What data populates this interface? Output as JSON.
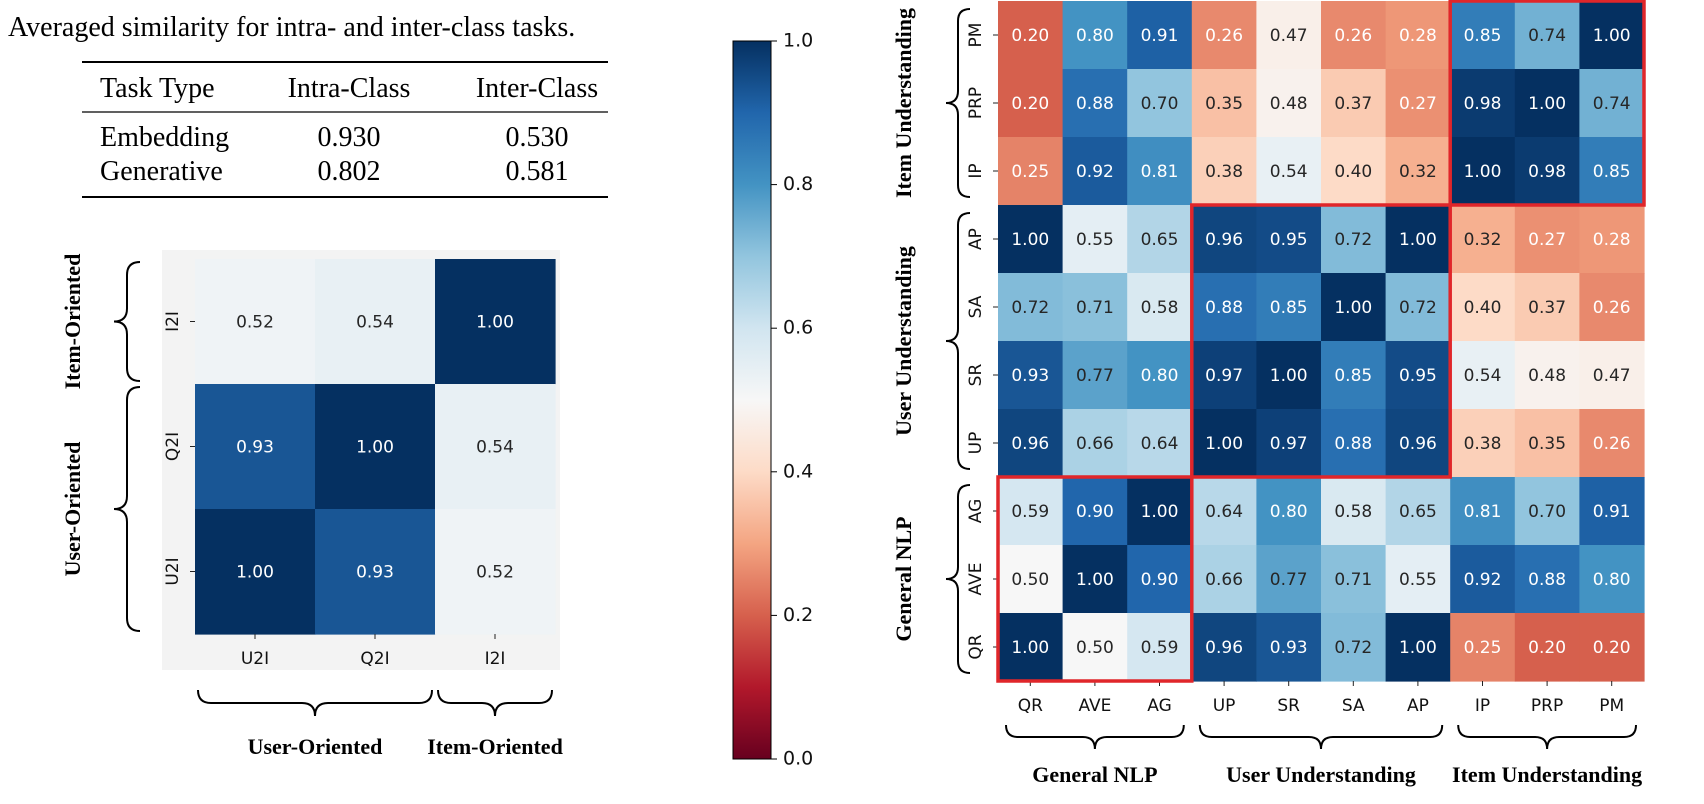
{
  "table": {
    "caption": "Averaged similarity for intra- and inter-class tasks.",
    "headers": [
      "Task Type",
      "Intra-Class",
      "Inter-Class"
    ],
    "rows": [
      [
        "Embedding",
        "0.930",
        "0.530"
      ],
      [
        "Generative",
        "0.802",
        "0.581"
      ]
    ]
  },
  "chart_data": [
    {
      "type": "heatmap",
      "title": "",
      "x_labels": [
        "U2I",
        "Q2I",
        "I2I"
      ],
      "y_labels": [
        "I2I",
        "Q2I",
        "U2I"
      ],
      "values": [
        [
          0.52,
          0.54,
          1.0
        ],
        [
          0.93,
          1.0,
          0.54
        ],
        [
          1.0,
          0.93,
          0.52
        ]
      ],
      "vmin": 0.0,
      "vmax": 1.0,
      "colormap": "RdBu",
      "x_groups": [
        {
          "label": "User-Oriented",
          "start": 0,
          "end": 1
        },
        {
          "label": "Item-Oriented",
          "start": 2,
          "end": 2
        }
      ],
      "y_groups": [
        {
          "label": "Item-Oriented",
          "start": 0,
          "end": 0
        },
        {
          "label": "User-Oriented",
          "start": 1,
          "end": 2
        }
      ]
    },
    {
      "type": "heatmap",
      "title": "",
      "x_labels": [
        "QR",
        "AVE",
        "AG",
        "UP",
        "SR",
        "SA",
        "AP",
        "IP",
        "PRP",
        "PM"
      ],
      "y_labels": [
        "PM",
        "PRP",
        "IP",
        "AP",
        "SA",
        "SR",
        "UP",
        "AG",
        "AVE",
        "QR"
      ],
      "values": [
        [
          0.2,
          0.8,
          0.91,
          0.26,
          0.47,
          0.26,
          0.28,
          0.85,
          0.74,
          1.0
        ],
        [
          0.2,
          0.88,
          0.7,
          0.35,
          0.48,
          0.37,
          0.27,
          0.98,
          1.0,
          0.74
        ],
        [
          0.25,
          0.92,
          0.81,
          0.38,
          0.54,
          0.4,
          0.32,
          1.0,
          0.98,
          0.85
        ],
        [
          1.0,
          0.55,
          0.65,
          0.96,
          0.95,
          0.72,
          1.0,
          0.32,
          0.27,
          0.28
        ],
        [
          0.72,
          0.71,
          0.58,
          0.88,
          0.85,
          1.0,
          0.72,
          0.4,
          0.37,
          0.26
        ],
        [
          0.93,
          0.77,
          0.8,
          0.97,
          1.0,
          0.85,
          0.95,
          0.54,
          0.48,
          0.47
        ],
        [
          0.96,
          0.66,
          0.64,
          1.0,
          0.97,
          0.88,
          0.96,
          0.38,
          0.35,
          0.26
        ],
        [
          0.59,
          0.9,
          1.0,
          0.64,
          0.8,
          0.58,
          0.65,
          0.81,
          0.7,
          0.91
        ],
        [
          0.5,
          1.0,
          0.9,
          0.66,
          0.77,
          0.71,
          0.55,
          0.92,
          0.88,
          0.8
        ],
        [
          1.0,
          0.5,
          0.59,
          0.96,
          0.93,
          0.72,
          1.0,
          0.25,
          0.2,
          0.2
        ]
      ],
      "vmin": 0.0,
      "vmax": 1.0,
      "colormap": "RdBu",
      "x_groups": [
        {
          "label": "General NLP",
          "start": 0,
          "end": 2
        },
        {
          "label": "User Understanding",
          "start": 3,
          "end": 6
        },
        {
          "label": "Item Understanding",
          "start": 7,
          "end": 9
        }
      ],
      "y_groups": [
        {
          "label": "Item Understanding",
          "start": 0,
          "end": 2
        },
        {
          "label": "User Understanding",
          "start": 3,
          "end": 6
        },
        {
          "label": "General NLP",
          "start": 7,
          "end": 9
        }
      ],
      "highlight_boxes": [
        {
          "rows": [
            0,
            2
          ],
          "cols": [
            7,
            9
          ]
        },
        {
          "rows": [
            3,
            6
          ],
          "cols": [
            3,
            6
          ]
        },
        {
          "rows": [
            7,
            9
          ],
          "cols": [
            0,
            2
          ]
        }
      ],
      "highlight_color": "#e0262a"
    }
  ],
  "colorbar": {
    "min": 0.0,
    "max": 1.0,
    "ticks": [
      "0.0",
      "0.2",
      "0.4",
      "0.6",
      "0.8",
      "1.0"
    ]
  }
}
